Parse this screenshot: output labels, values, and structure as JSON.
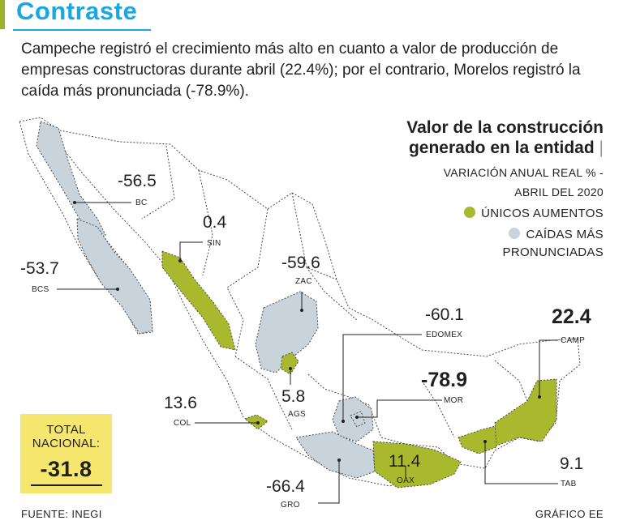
{
  "title": "Contraste",
  "lead": "Campeche registró el crecimiento más alto en cuanto a valor de producción de empresas constructoras durante abril (22.4%); por el contrario, Morelos registró la caída más pronunciada (-78.9%).",
  "legend": {
    "title_line1": "Valor de la construcción",
    "title_line2": "generado en la entidad",
    "subtitle_line1": "VARIACIÓN ANUAL REAL % -",
    "subtitle_line2": "ABRIL DEL 2020",
    "increase_label": "ÚNICOS AUMENTOS",
    "decline_line1": "CAÍDAS MÁS",
    "decline_line2": "PRONUNCIADAS"
  },
  "colors": {
    "increase": "#a9b92e",
    "decline": "#c8d3dc",
    "total_box": "#f5e66d",
    "title": "#1ba7e0"
  },
  "states": [
    {
      "abbr": "BC",
      "value": "-56.5",
      "category": "decline"
    },
    {
      "abbr": "BCS",
      "value": "-53.7",
      "category": "decline"
    },
    {
      "abbr": "SIN",
      "value": "0.4",
      "category": "increase"
    },
    {
      "abbr": "ZAC",
      "value": "-59.6",
      "category": "decline"
    },
    {
      "abbr": "AGS",
      "value": "5.8",
      "category": "increase"
    },
    {
      "abbr": "COL",
      "value": "13.6",
      "category": "increase"
    },
    {
      "abbr": "EDOMEX",
      "value": "-60.1",
      "category": "decline"
    },
    {
      "abbr": "MOR",
      "value": "-78.9",
      "category": "decline"
    },
    {
      "abbr": "CAMP",
      "value": "22.4",
      "category": "increase"
    },
    {
      "abbr": "OAX",
      "value": "11.4",
      "category": "increase"
    },
    {
      "abbr": "TAB",
      "value": "9.1",
      "category": "increase"
    },
    {
      "abbr": "GRO",
      "value": "-66.4",
      "category": "decline"
    }
  ],
  "total": {
    "label_line1": "TOTAL",
    "label_line2": "NACIONAL:",
    "value": "-31.8"
  },
  "footer": {
    "source": "FUENTE: INEGI",
    "credit": "GRÁFICO EE"
  }
}
